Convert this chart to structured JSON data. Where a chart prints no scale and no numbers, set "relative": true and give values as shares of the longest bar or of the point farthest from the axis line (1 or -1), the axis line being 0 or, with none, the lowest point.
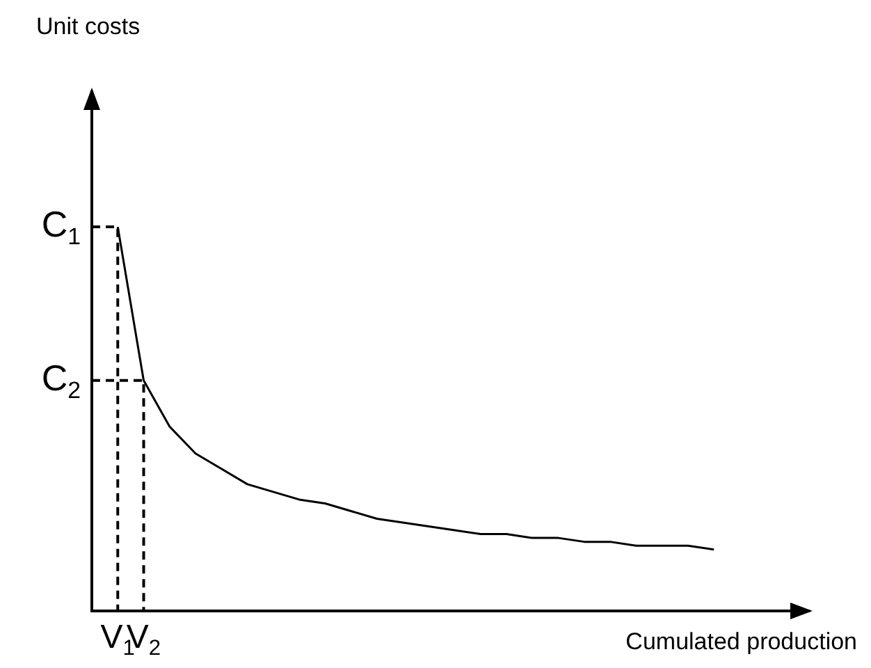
{
  "chart_data": {
    "type": "line",
    "relative": true,
    "xlabel": "Cumulated production",
    "tick_labels": "x",
    "legend": false,
    "marker": "none",
    "categories": [
      null,
      "V$_{1}$",
      "V$_{2}$",
      null,
      null,
      null,
      null,
      null,
      null,
      null,
      null,
      null,
      null,
      null,
      null,
      null,
      null,
      null,
      null,
      null,
      null,
      null,
      null,
      null,
      null,
      null,
      null,
      null
    ],
    "annotations": [
      "Unit costs",
      {
        "text": "C$_{1}$",
        "x": "V$_{1}$",
        "y": 1
      },
      {
        "text": "C$_{2}$",
        "x": "V$_{2}$",
        "y": 0.6
      }
    ],
    "series": [
      {
        "color": "#000000",
        "line_style": "solid",
        "values": [
          null,
          1,
          0.6,
          0.48,
          0.41,
          0.37,
          0.33,
          0.31,
          0.29,
          0.28,
          0.26,
          0.24,
          0.23,
          0.22,
          0.21,
          0.2,
          0.2,
          0.19,
          0.19,
          0.18,
          0.18,
          0.17,
          0.17,
          0.17,
          0.16,
          null,
          null,
          null
        ]
      }
    ]
  }
}
